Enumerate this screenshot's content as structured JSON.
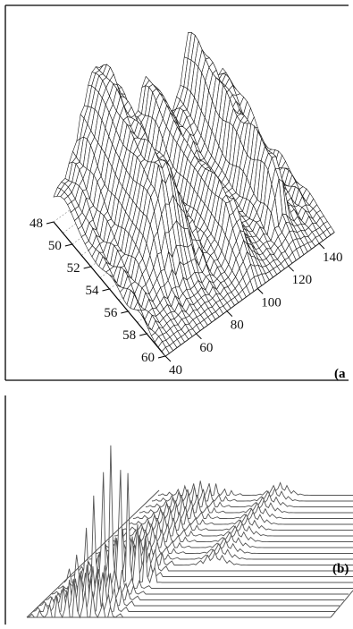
{
  "chart_data": [
    {
      "type": "surface",
      "panel_label": "(a",
      "y_ticks": [
        "48",
        "50",
        "52",
        "54",
        "56",
        "58",
        "60"
      ],
      "x_ticks": [
        "40",
        "60",
        "80",
        "100",
        "120",
        "140"
      ],
      "ylim": [
        48,
        60
      ],
      "xlim": [
        40,
        140
      ],
      "grid": true
    },
    {
      "type": "waterfall",
      "panel_label": "(b)",
      "traces": 22,
      "grid": false
    }
  ]
}
